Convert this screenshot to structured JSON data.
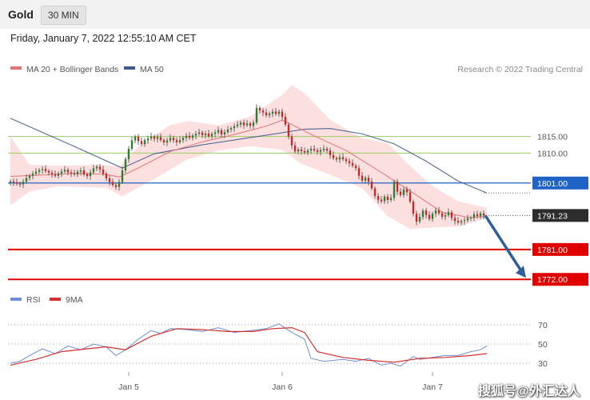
{
  "header": {
    "title": "Gold",
    "timeframe": "30 MIN",
    "datetime": "Friday, January 7, 2022 12:55:10 AM CET"
  },
  "legend": {
    "ma20_label": "MA 20 + Bollinger Bands",
    "ma50_label": "MA 50",
    "copyright": "Research © 2022 Trading Central"
  },
  "rsi_legend": {
    "rsi_label": "RSI",
    "ma_label": "9MA"
  },
  "watermark": "搜狐号@外汇达人",
  "colors": {
    "up": "#2e7d32",
    "down": "#c62828",
    "ma20": "#e57373",
    "ma50": "#3f5a8c",
    "band_fill": "#fbd9d9",
    "support": "#e00000",
    "pivot": "#1f63c7",
    "resistance": "#9ccc65",
    "arrow": "#2f5f9a",
    "rsi": "#6f8fd6",
    "rsi_ma": "#d32f2f"
  },
  "chart_data": [
    {
      "type": "candlestick",
      "x_ticks": [
        "Jan 5",
        "Jan 6",
        "Jan 7"
      ],
      "y_labels": [
        {
          "value": 1815.0,
          "label": "1815.00",
          "kind": "resistance"
        },
        {
          "value": 1810.0,
          "label": "1810.00",
          "kind": "resistance"
        },
        {
          "value": 1801.0,
          "label": "1801.00",
          "kind": "pivot"
        },
        {
          "value": 1791.23,
          "label": "1791.23",
          "kind": "last"
        },
        {
          "value": 1781.0,
          "label": "1781.00",
          "kind": "support"
        },
        {
          "value": 1772.0,
          "label": "1772.00",
          "kind": "support"
        }
      ],
      "ylim": [
        1767,
        1832
      ],
      "close": [
        1801.5,
        1801.2,
        1800.8,
        1800.6,
        1801.4,
        1802.5,
        1803.2,
        1803.8,
        1804.4,
        1804.9,
        1805.2,
        1804.6,
        1804.1,
        1803.7,
        1803.2,
        1803.9,
        1804.5,
        1805.0,
        1804.2,
        1803.9,
        1803.6,
        1804.4,
        1804.8,
        1803.6,
        1803.1,
        1804.2,
        1805.4,
        1805.9,
        1805.1,
        1803.8,
        1802.4,
        1801.3,
        1800.4,
        1799.8,
        1801.3,
        1804.8,
        1808.2,
        1811.3,
        1813.8,
        1814.9,
        1813.6,
        1812.7,
        1813.9,
        1814.4,
        1815.0,
        1814.3,
        1814.8,
        1813.9,
        1813.2,
        1813.8,
        1814.6,
        1813.9,
        1813.3,
        1813.9,
        1814.6,
        1815.2,
        1814.6,
        1815.3,
        1815.8,
        1816.2,
        1815.4,
        1815.9,
        1815.1,
        1815.8,
        1816.2,
        1816.9,
        1815.6,
        1816.3,
        1817.1,
        1817.5,
        1818.1,
        1818.6,
        1819.2,
        1818.4,
        1818.9,
        1818.2,
        1819.2,
        1823.6,
        1822.8,
        1822.2,
        1821.4,
        1821.9,
        1822.5,
        1821.8,
        1822.5,
        1820.9,
        1818.6,
        1815.0,
        1812.3,
        1810.5,
        1811.1,
        1810.6,
        1810.2,
        1810.8,
        1811.3,
        1810.9,
        1810.4,
        1810.9,
        1811.3,
        1810.8,
        1809.4,
        1808.5,
        1808.1,
        1808.8,
        1808.2,
        1807.6,
        1807.0,
        1806.2,
        1805.5,
        1803.2,
        1801.7,
        1802.6,
        1801.4,
        1799.4,
        1797.1,
        1796.0,
        1795.5,
        1796.9,
        1795.9,
        1796.5,
        1801.4,
        1798.4,
        1797.4,
        1799.1,
        1798.2,
        1795.4,
        1791.8,
        1789.4,
        1790.8,
        1792.7,
        1791.4,
        1790.2,
        1791.8,
        1792.7,
        1791.9,
        1790.9,
        1791.3,
        1792.2,
        1790.5,
        1789.6,
        1789.1,
        1789.5,
        1789.8,
        1790.4,
        1790.6,
        1791.6,
        1791.0,
        1791.9,
        1791.23
      ],
      "ma20_path": [
        [
          0,
          1803.0
        ],
        [
          10,
          1803.4
        ],
        [
          20,
          1803.9
        ],
        [
          30,
          1803.6
        ],
        [
          34,
          1802.8
        ],
        [
          40,
          1805.5
        ],
        [
          50,
          1810.5
        ],
        [
          60,
          1813.4
        ],
        [
          70,
          1815.6
        ],
        [
          80,
          1818.1
        ],
        [
          85,
          1819.9
        ],
        [
          88,
          1818.6
        ],
        [
          95,
          1815.2
        ],
        [
          105,
          1810.8
        ],
        [
          115,
          1804.8
        ],
        [
          125,
          1798.6
        ],
        [
          135,
          1792.2
        ],
        [
          144,
          1790.5
        ],
        [
          149,
          1791.0
        ]
      ],
      "band_upper": [
        [
          0,
          1815.0
        ],
        [
          6,
          1806.5
        ],
        [
          15,
          1806.2
        ],
        [
          28,
          1806.5
        ],
        [
          34,
          1806.0
        ],
        [
          40,
          1812.0
        ],
        [
          50,
          1818.5
        ],
        [
          56,
          1819.6
        ],
        [
          65,
          1818.3
        ],
        [
          75,
          1821.0
        ],
        [
          85,
          1827.5
        ],
        [
          88,
          1830.5
        ],
        [
          92,
          1828.0
        ],
        [
          100,
          1820.0
        ],
        [
          110,
          1814.5
        ],
        [
          118,
          1813.0
        ],
        [
          124,
          1807.0
        ],
        [
          132,
          1800.0
        ],
        [
          140,
          1795.5
        ],
        [
          149,
          1793.5
        ]
      ],
      "band_lower": [
        [
          0,
          1794.2
        ],
        [
          6,
          1798.5
        ],
        [
          15,
          1800.0
        ],
        [
          30,
          1799.6
        ],
        [
          35,
          1797.0
        ],
        [
          45,
          1802.2
        ],
        [
          55,
          1808.0
        ],
        [
          65,
          1810.8
        ],
        [
          75,
          1812.1
        ],
        [
          85,
          1811.0
        ],
        [
          91,
          1806.8
        ],
        [
          100,
          1803.5
        ],
        [
          110,
          1799.5
        ],
        [
          118,
          1791.0
        ],
        [
          125,
          1787.2
        ],
        [
          132,
          1787.6
        ],
        [
          140,
          1787.9
        ],
        [
          149,
          1790.4
        ]
      ],
      "ma50_path": [
        [
          0,
          1820.5
        ],
        [
          20,
          1812.0
        ],
        [
          35,
          1805.5
        ],
        [
          45,
          1809.8
        ],
        [
          60,
          1812.5
        ],
        [
          80,
          1815.4
        ],
        [
          92,
          1817.2
        ],
        [
          100,
          1817.4
        ],
        [
          110,
          1815.8
        ],
        [
          120,
          1812.8
        ],
        [
          130,
          1807.6
        ],
        [
          140,
          1801.6
        ],
        [
          149,
          1798.0
        ]
      ],
      "projection": {
        "from": 1791.23,
        "to": 1772.0
      }
    },
    {
      "type": "line",
      "name": "RSI",
      "y_ticks": [
        70,
        50,
        30
      ],
      "ylim": [
        25,
        75
      ],
      "rsi_path": [
        [
          0,
          30
        ],
        [
          3,
          32
        ],
        [
          6,
          38
        ],
        [
          10,
          45
        ],
        [
          14,
          40
        ],
        [
          18,
          48
        ],
        [
          22,
          44
        ],
        [
          26,
          50
        ],
        [
          30,
          47
        ],
        [
          33,
          38
        ],
        [
          36,
          44
        ],
        [
          40,
          55
        ],
        [
          44,
          64
        ],
        [
          47,
          61
        ],
        [
          50,
          66
        ],
        [
          55,
          65
        ],
        [
          60,
          63
        ],
        [
          65,
          67
        ],
        [
          70,
          62
        ],
        [
          75,
          64
        ],
        [
          80,
          66
        ],
        [
          84,
          71
        ],
        [
          88,
          62
        ],
        [
          92,
          55
        ],
        [
          94,
          35
        ],
        [
          98,
          32
        ],
        [
          104,
          34
        ],
        [
          108,
          32
        ],
        [
          112,
          35
        ],
        [
          116,
          28
        ],
        [
          119,
          30
        ],
        [
          122,
          27
        ],
        [
          126,
          37
        ],
        [
          128,
          34
        ],
        [
          132,
          36
        ],
        [
          136,
          38
        ],
        [
          140,
          38
        ],
        [
          144,
          42
        ],
        [
          147,
          44
        ],
        [
          149,
          48
        ]
      ],
      "ma_path": [
        [
          0,
          28
        ],
        [
          8,
          34
        ],
        [
          16,
          42
        ],
        [
          24,
          45
        ],
        [
          30,
          47
        ],
        [
          36,
          44
        ],
        [
          44,
          58
        ],
        [
          52,
          66
        ],
        [
          60,
          65
        ],
        [
          68,
          63
        ],
        [
          76,
          63
        ],
        [
          82,
          66
        ],
        [
          88,
          67
        ],
        [
          92,
          62
        ],
        [
          96,
          42
        ],
        [
          104,
          36
        ],
        [
          112,
          33
        ],
        [
          120,
          31
        ],
        [
          128,
          35
        ],
        [
          136,
          36
        ],
        [
          144,
          38
        ],
        [
          149,
          40
        ]
      ]
    }
  ]
}
